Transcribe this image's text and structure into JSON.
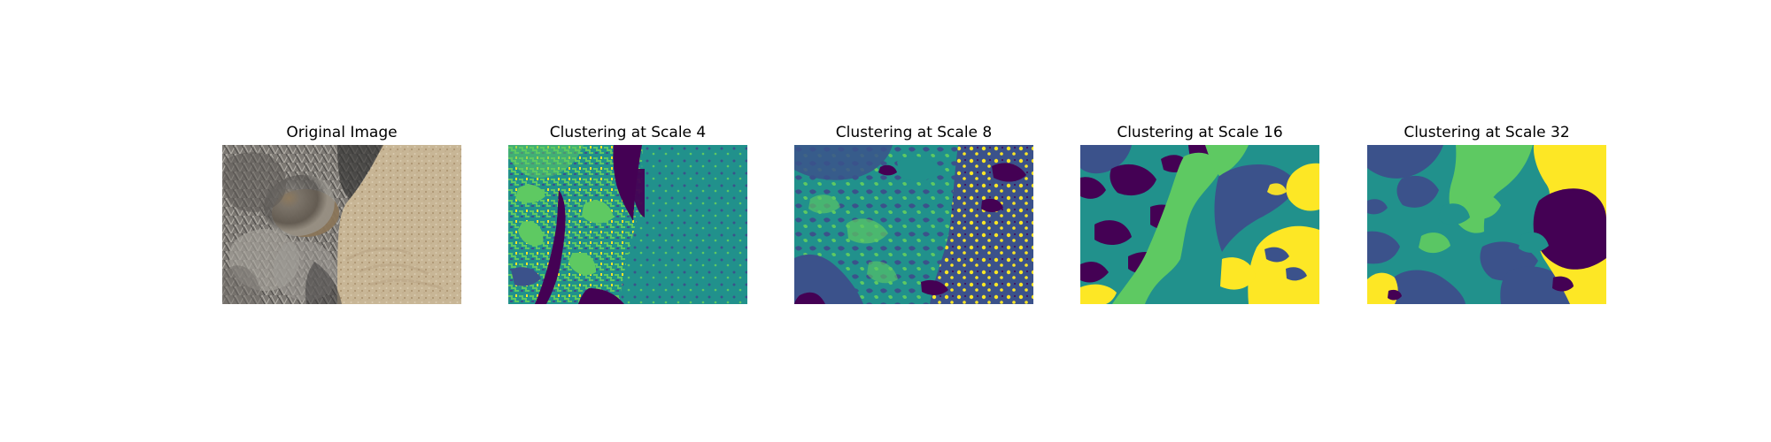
{
  "figure": {
    "panels": [
      {
        "title": "Original Image",
        "kind": "photo",
        "colors": {
          "soil_light": "#c9b797",
          "soil_mid": "#b7a07b",
          "shrub_light": "#a3a09a",
          "shrub_mid": "#76736f",
          "shrub_dark": "#434241",
          "brown_patch": "#8f785a"
        }
      },
      {
        "title": "Clustering at Scale 4",
        "kind": "clusters",
        "clusters": 5
      },
      {
        "title": "Clustering at Scale 8",
        "kind": "clusters",
        "clusters": 5
      },
      {
        "title": "Clustering at Scale 16",
        "kind": "clusters",
        "clusters": 5
      },
      {
        "title": "Clustering at Scale 32",
        "kind": "clusters",
        "clusters": 5
      }
    ],
    "palette": {
      "purple": "#440154",
      "blue": "#3b528b",
      "teal": "#21918c",
      "green": "#5ec962",
      "yellow": "#fde725"
    }
  }
}
